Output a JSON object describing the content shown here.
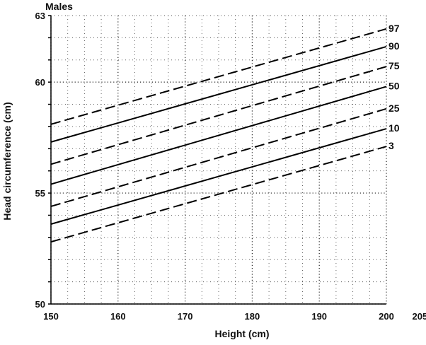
{
  "chart_data": {
    "type": "line",
    "title": "Males",
    "xlabel": "Height (cm)",
    "ylabel": "Head circumference (cm)",
    "xlim": [
      150,
      205
    ],
    "ylim": [
      50,
      63
    ],
    "x_ticks": [
      "150",
      "160",
      "170",
      "180",
      "190",
      "200",
      "205"
    ],
    "y_ticks": [
      "50",
      "55",
      "60",
      "63"
    ],
    "grid": true,
    "x": [
      150,
      200
    ],
    "series": [
      {
        "name": "97",
        "style": "dashed",
        "values": [
          58.1,
          62.4
        ]
      },
      {
        "name": "90",
        "style": "solid",
        "values": [
          57.3,
          61.6
        ]
      },
      {
        "name": "75",
        "style": "dashed",
        "values": [
          56.3,
          60.7
        ]
      },
      {
        "name": "50",
        "style": "solid",
        "values": [
          55.4,
          59.8
        ]
      },
      {
        "name": "25",
        "style": "dashed",
        "values": [
          54.4,
          58.8
        ]
      },
      {
        "name": "10",
        "style": "solid",
        "values": [
          53.6,
          57.9
        ]
      },
      {
        "name": "3",
        "style": "dashed",
        "values": [
          52.8,
          57.1
        ]
      }
    ]
  }
}
